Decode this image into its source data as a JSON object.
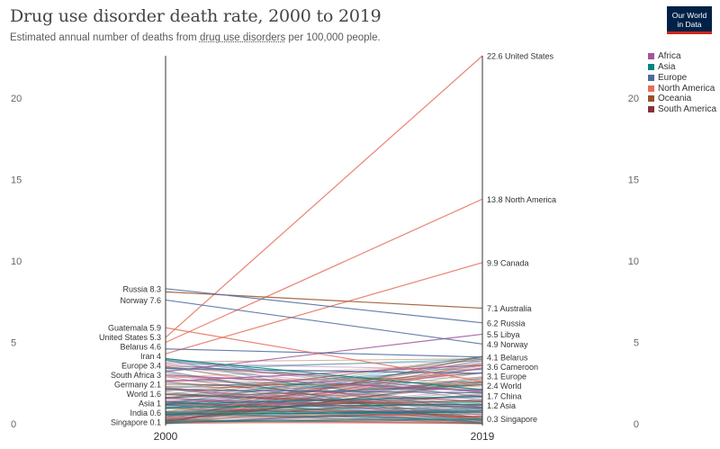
{
  "header": {
    "title": "Drug use disorder death rate, 2000 to 2019",
    "subtitle_pre": "Estimated annual number of deaths from ",
    "subtitle_link": "drug use disorders",
    "subtitle_post": " per 100,000 people.",
    "logo_line1": "Our World",
    "logo_line2": "in Data"
  },
  "colors": {
    "Africa": "#a2559c",
    "Asia": "#00847e",
    "Europe": "#4c6a9c",
    "North America": "#e56e5a",
    "Oceania": "#9a5129",
    "South America": "#883039"
  },
  "chart_data": {
    "type": "line",
    "title": "Drug use disorder death rate, 2000 to 2019",
    "subtitle": "Estimated annual number of deaths from drug use disorders per 100,000 people.",
    "x": [
      "2000",
      "2019"
    ],
    "ylim": [
      0,
      22.6
    ],
    "y_ticks": [
      0,
      5,
      10,
      15,
      20
    ],
    "grid": false,
    "legend_placement": "right",
    "legend": [
      "Africa",
      "Asia",
      "Europe",
      "North America",
      "Oceania",
      "South America"
    ],
    "series": [
      {
        "name": "United States",
        "group": "North America",
        "values": [
          5.3,
          22.6
        ]
      },
      {
        "name": "North America",
        "group": "North America",
        "values": [
          5.0,
          13.8
        ]
      },
      {
        "name": "Canada",
        "group": "North America",
        "values": [
          4.3,
          9.9
        ]
      },
      {
        "name": "Australia",
        "group": "Oceania",
        "values": [
          8.1,
          7.1
        ]
      },
      {
        "name": "Russia",
        "group": "Europe",
        "values": [
          8.3,
          6.2
        ]
      },
      {
        "name": "Libya",
        "group": "Africa",
        "values": [
          3.2,
          5.5
        ]
      },
      {
        "name": "Norway",
        "group": "Europe",
        "values": [
          7.6,
          4.9
        ]
      },
      {
        "name": "Belarus",
        "group": "Europe",
        "values": [
          4.6,
          4.1
        ]
      },
      {
        "name": "Cameroon",
        "group": "Africa",
        "values": [
          2.6,
          3.6
        ]
      },
      {
        "name": "Europe",
        "group": "Europe",
        "values": [
          3.4,
          3.1
        ]
      },
      {
        "name": "World",
        "group": "",
        "values": [
          1.6,
          2.4
        ]
      },
      {
        "name": "China",
        "group": "Asia",
        "values": [
          1.2,
          1.7
        ]
      },
      {
        "name": "Asia",
        "group": "Asia",
        "values": [
          1.0,
          1.2
        ]
      },
      {
        "name": "Singapore",
        "group": "Asia",
        "values": [
          0.1,
          0.3
        ]
      },
      {
        "name": "Guatemala",
        "group": "North America",
        "values": [
          5.9,
          2.6
        ]
      },
      {
        "name": "Iran",
        "group": "Asia",
        "values": [
          4.0,
          2.1
        ]
      },
      {
        "name": "South Africa",
        "group": "Africa",
        "values": [
          3.0,
          2.0
        ]
      },
      {
        "name": "Germany",
        "group": "Europe",
        "values": [
          2.1,
          1.9
        ]
      },
      {
        "name": "India",
        "group": "Asia",
        "values": [
          0.6,
          0.7
        ]
      }
    ],
    "left_labels": [
      {
        "name": "Russia",
        "value": "8.3"
      },
      {
        "name": "Norway",
        "value": "7.6"
      },
      {
        "name": "Guatemala",
        "value": "5.9"
      },
      {
        "name": "United States",
        "value": "5.3"
      },
      {
        "name": "Belarus",
        "value": "4.6"
      },
      {
        "name": "Iran",
        "value": "4"
      },
      {
        "name": "Europe",
        "value": "3.4"
      },
      {
        "name": "South Africa",
        "value": "3"
      },
      {
        "name": "Germany",
        "value": "2.1"
      },
      {
        "name": "World",
        "value": "1.6"
      },
      {
        "name": "Asia",
        "value": "1"
      },
      {
        "name": "India",
        "value": "0.6"
      },
      {
        "name": "Singapore",
        "value": "0.1"
      }
    ],
    "right_labels": [
      {
        "name": "United States",
        "value": "22.6"
      },
      {
        "name": "North America",
        "value": "13.8"
      },
      {
        "name": "Canada",
        "value": "9.9"
      },
      {
        "name": "Australia",
        "value": "7.1"
      },
      {
        "name": "Russia",
        "value": "6.2"
      },
      {
        "name": "Libya",
        "value": "5.5"
      },
      {
        "name": "Norway",
        "value": "4.9"
      },
      {
        "name": "Belarus",
        "value": "4.1"
      },
      {
        "name": "Cameroon",
        "value": "3.6"
      },
      {
        "name": "Europe",
        "value": "3.1"
      },
      {
        "name": "World",
        "value": "2.4"
      },
      {
        "name": "China",
        "value": "1.7"
      },
      {
        "name": "Asia",
        "value": "1.2"
      },
      {
        "name": "Singapore",
        "value": "0.3"
      }
    ]
  }
}
